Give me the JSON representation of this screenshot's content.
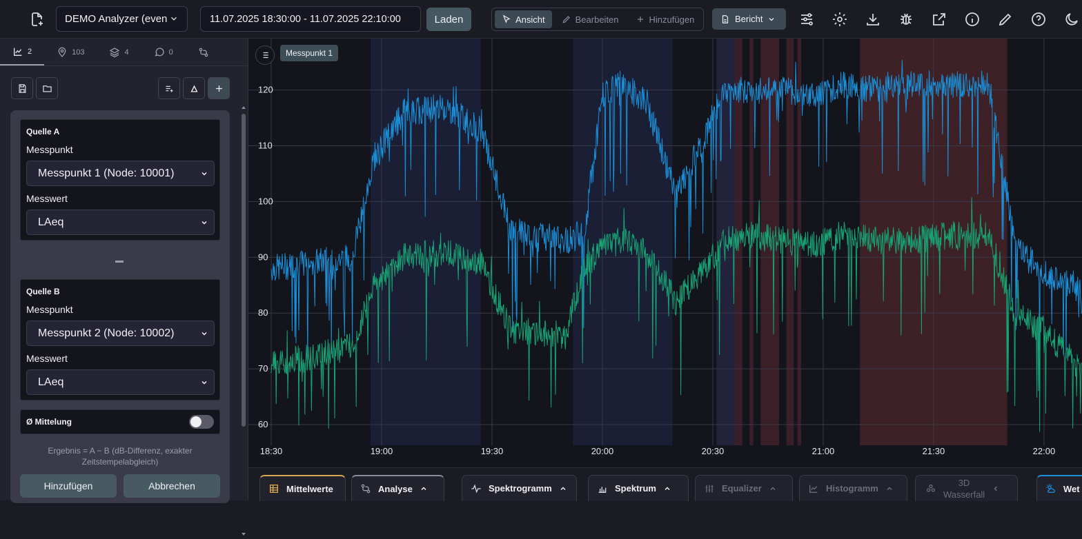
{
  "toolbar": {
    "project_select": "DEMO Analyzer (even",
    "date_range": "11.07.2025 18:30:00 - 11.07.2025 22:10:00",
    "load_label": "Laden",
    "modes": [
      "Ansicht",
      "Bearbeiten",
      "Hinzufügen"
    ],
    "active_mode": "Ansicht",
    "report_label": "Bericht",
    "icons": [
      "new-file-icon",
      "sliders-icon",
      "gear-icon",
      "download-icon",
      "bug-icon",
      "external-link-icon",
      "info-icon",
      "pencil-icon",
      "help-icon",
      "moon-icon"
    ]
  },
  "sidebar": {
    "tabs": [
      {
        "icon": "chart-icon",
        "count": "2"
      },
      {
        "icon": "location-pin-icon",
        "count": "103"
      },
      {
        "icon": "layers-icon",
        "count": "4"
      },
      {
        "icon": "chat-icon",
        "count": "0"
      },
      {
        "icon": "compare-icon",
        "count": ""
      }
    ],
    "source_a": {
      "title": "Quelle A",
      "point_label": "Messpunkt",
      "point_value": "Messpunkt 1 (Node: 10001)",
      "metric_label": "Messwert",
      "metric_value": "LAeq"
    },
    "source_b": {
      "title": "Quelle B",
      "point_label": "Messpunkt",
      "point_value": "Messpunkt 2 (Node: 10002)",
      "metric_label": "Messwert",
      "metric_value": "LAeq"
    },
    "averaging_label": "Ø Mittelung",
    "averaging_on": false,
    "result_note": "Ergebnis = A − B (dB-Differenz, exakter Zeitstempelabgleich)",
    "add_label": "Hinzufügen",
    "cancel_label": "Abbrechen"
  },
  "chart": {
    "legend_chip": "Messpunkt 1",
    "series_colors": {
      "a": "#1a8fd8",
      "b": "#17a374"
    }
  },
  "chart_data": {
    "type": "line",
    "x_ticks": [
      "18:30",
      "19:00",
      "19:30",
      "20:00",
      "20:30",
      "21:00",
      "21:30",
      "22:00"
    ],
    "y_ticks": [
      60,
      70,
      80,
      90,
      100,
      110,
      120
    ],
    "ylim": [
      57,
      127
    ],
    "xlim": [
      "18:30",
      "22:13"
    ],
    "grid": true,
    "series": [
      {
        "x": [
          "18:30",
          "18:40",
          "18:52",
          "18:58",
          "19:06",
          "19:17",
          "19:27",
          "19:35",
          "19:50",
          "19:55",
          "20:00",
          "20:05",
          "20:12",
          "20:20",
          "20:28",
          "20:33",
          "20:40",
          "20:50",
          "20:57",
          "21:05",
          "21:15",
          "21:25",
          "21:35",
          "21:45",
          "21:52",
          "22:00",
          "22:10",
          "22:13"
        ],
        "values": [
          88,
          89,
          90,
          108,
          116,
          117,
          113,
          95,
          93,
          94,
          119,
          121,
          118,
          101,
          112,
          120,
          120,
          120,
          119,
          121,
          120,
          121,
          121,
          121,
          93,
          87,
          84,
          82
        ]
      },
      {
        "x": [
          "18:30",
          "18:40",
          "18:52",
          "18:58",
          "19:06",
          "19:17",
          "19:27",
          "19:35",
          "19:50",
          "19:55",
          "20:00",
          "20:05",
          "20:12",
          "20:20",
          "20:28",
          "20:33",
          "20:40",
          "20:50",
          "20:57",
          "21:05",
          "21:15",
          "21:25",
          "21:35",
          "21:45",
          "21:52",
          "22:00",
          "22:10",
          "22:13"
        ],
        "values": [
          71,
          72,
          74,
          85,
          90,
          91,
          89,
          77,
          76,
          88,
          92,
          93,
          91,
          82,
          88,
          93,
          94,
          93,
          92,
          94,
          93,
          93,
          94,
          94,
          80,
          77,
          70,
          65
        ]
      }
    ],
    "shaded_ranges": [
      {
        "from": "18:57",
        "to": "19:27",
        "color": "#1a1f35"
      },
      {
        "from": "19:52",
        "to": "20:19",
        "color": "#1a1f35"
      },
      {
        "from": "20:31",
        "to": "20:38",
        "color": "#22223a"
      },
      {
        "from": "20:36",
        "to": "20:38",
        "color": "#3a1f28"
      },
      {
        "from": "20:40",
        "to": "20:41",
        "color": "#3a1f28"
      },
      {
        "from": "20:43",
        "to": "20:48",
        "color": "#3a1f28"
      },
      {
        "from": "20:50",
        "to": "20:52",
        "color": "#3a1f28"
      },
      {
        "from": "20:53",
        "to": "20:54",
        "color": "#3a1f28"
      },
      {
        "from": "21:10",
        "to": "21:50",
        "color": "#3d2126"
      }
    ]
  },
  "bottom_tabs": [
    {
      "label": "Mittelwerte",
      "icon": "table-icon",
      "chevron": false,
      "dim": false
    },
    {
      "label": "Analyse",
      "icon": "compare-icon",
      "chevron": true,
      "dim": false
    },
    {
      "label": "Spektrogramm",
      "icon": "wave-icon",
      "chevron": true,
      "dim": false
    },
    {
      "label": "Spektrum",
      "icon": "bar-chart-icon",
      "chevron": true,
      "dim": false
    },
    {
      "label": "Equalizer",
      "icon": "equalizer-icon",
      "chevron": true,
      "dim": true
    },
    {
      "label": "Histogramm",
      "icon": "histogram-icon",
      "chevron": true,
      "dim": true
    },
    {
      "label": "3D Wasserfall",
      "icon": "cubes-icon",
      "chevron": true,
      "dim": true
    },
    {
      "label": "Wet",
      "icon": "weather-icon",
      "chevron": false,
      "dim": false
    }
  ]
}
